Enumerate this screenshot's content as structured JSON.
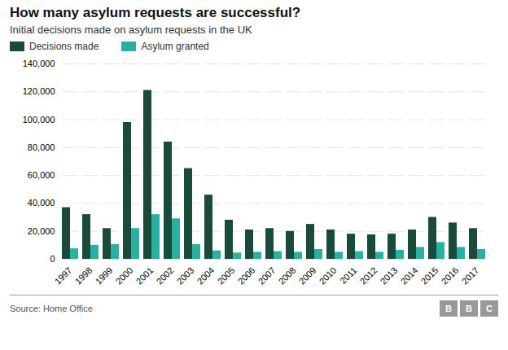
{
  "chart_data": {
    "type": "bar",
    "title": "How many asylum requests are successful?",
    "subtitle": "Initial decisions made on asylum requests in the UK",
    "annotations": [
      "Source: Home Office",
      "BBC"
    ],
    "categories": [
      "1997",
      "1998",
      "1999",
      "2000",
      "2001",
      "2002",
      "2003",
      "2004",
      "2005",
      "2006",
      "2007",
      "2008",
      "2009",
      "2010",
      "2011",
      "2012",
      "2013",
      "2014",
      "2015",
      "2016",
      "2017"
    ],
    "series": [
      {
        "name": "Decisions made",
        "color": "#1a4a3a",
        "values": [
          37000,
          32000,
          22000,
          98000,
          121000,
          84000,
          65000,
          46000,
          28000,
          21000,
          22000,
          20000,
          25000,
          21000,
          18000,
          17500,
          18000,
          21000,
          30000,
          26000,
          22000
        ]
      },
      {
        "name": "Asylum granted",
        "color": "#2ab0a0",
        "values": [
          7500,
          10000,
          10500,
          22000,
          32000,
          29000,
          10500,
          6000,
          4500,
          5000,
          5500,
          5000,
          7000,
          5000,
          5500,
          5000,
          6500,
          8500,
          12000,
          8500,
          7000
        ]
      }
    ],
    "ylim": [
      0,
      140000
    ],
    "yticks": [
      0,
      {
        "value": 20000,
        "label": "20,000"
      },
      {
        "value": 40000,
        "label": "40,000"
      },
      {
        "value": 60000,
        "label": "60,000"
      },
      {
        "value": 80000,
        "label": "80,000"
      },
      {
        "value": 100000,
        "label": "100,000"
      },
      {
        "value": 120000,
        "label": "120,000"
      },
      {
        "value": 140000,
        "label": "140,000"
      }
    ],
    "grid": true,
    "legend": "top left"
  }
}
